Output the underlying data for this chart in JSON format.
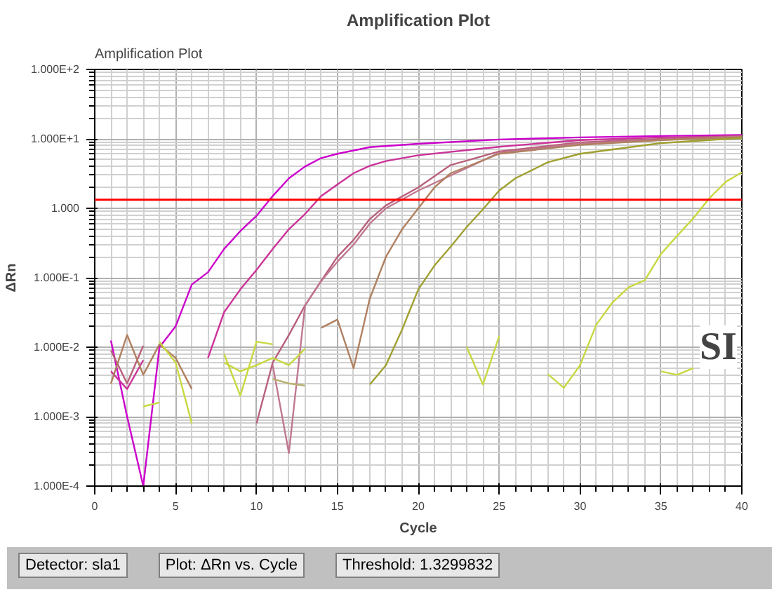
{
  "chart_data": {
    "type": "line",
    "title": "Amplification Plot",
    "xlabel": "Cycle",
    "ylabel": "ΔRn",
    "log": "y",
    "grid": true,
    "line_style": "solid",
    "marker": "none",
    "xlim": [
      0,
      40
    ],
    "xticks": [
      0,
      5,
      10,
      15,
      20,
      25,
      30,
      35,
      40
    ],
    "ylim": [
      0.0001,
      100
    ],
    "yticks": [
      {
        "value": 100,
        "label": "1.000E+2"
      },
      {
        "value": 10,
        "label": "1.000E+1"
      },
      {
        "value": 1,
        "label": "1.000"
      },
      {
        "value": 0.1,
        "label": "1.000E-1"
      },
      {
        "value": 0.01,
        "label": "1.000E-2"
      },
      {
        "value": 0.001,
        "label": "1.000E-3"
      },
      {
        "value": 0.0001,
        "label": "1.000E-4"
      }
    ],
    "ref_lines": [
      {
        "axis": "y",
        "value": 1.3299832,
        "color": "#ff0000"
      }
    ],
    "annotations": [
      "Amplification Plot",
      "Detector: sla1",
      "Plot: ΔRn vs. Cycle",
      "Threshold: 1.3299832",
      "SI"
    ],
    "series": [
      {
        "color": "#cc00cc",
        "x": [
          1,
          2,
          3,
          4,
          5,
          6,
          7,
          8,
          9,
          10,
          11,
          12,
          13,
          14,
          15,
          17,
          20,
          25,
          30,
          35,
          40
        ],
        "values": [
          0.0125,
          0.001,
          0.0001,
          0.01,
          0.02,
          0.08,
          0.12,
          0.26,
          0.47,
          0.78,
          1.5,
          2.7,
          4,
          5.3,
          6.1,
          7.6,
          8.5,
          9.8,
          10.5,
          11,
          11.4
        ]
      },
      {
        "color": "#cc3399",
        "x": [
          1,
          2,
          3,
          4,
          7,
          8,
          9,
          10,
          11,
          12,
          13,
          14,
          15,
          16,
          17,
          18,
          20,
          25,
          30,
          35,
          40
        ],
        "values": [
          0.0045,
          0.0025,
          0.0065,
          null,
          0.007,
          0.032,
          0.068,
          0.13,
          0.26,
          0.5,
          0.83,
          1.5,
          2.2,
          3.2,
          4.1,
          4.8,
          5.8,
          7.7,
          9.6,
          10.5,
          11
        ]
      },
      {
        "color": "#b8607a",
        "x": [
          1,
          2,
          3,
          4,
          10,
          11,
          12,
          13,
          14,
          15,
          16,
          17,
          18,
          20,
          22,
          25,
          30,
          35,
          40
        ],
        "values": [
          0.009,
          0.003,
          0.0105,
          null,
          0.0008,
          0.006,
          0.015,
          0.04,
          0.09,
          0.2,
          0.35,
          0.7,
          1.1,
          2.0,
          4.2,
          6.6,
          8.9,
          10,
          11
        ]
      },
      {
        "color": "#c07890",
        "x": [
          11,
          12,
          13,
          14,
          15,
          16,
          17,
          18,
          20,
          25,
          30,
          40
        ],
        "values": [
          0.0055,
          0.0003,
          0.04,
          0.09,
          0.17,
          0.3,
          0.6,
          1.0,
          1.8,
          6.3,
          8.6,
          10.8
        ]
      },
      {
        "color": "#b08060",
        "x": [
          1,
          2,
          3,
          4,
          5,
          6,
          7,
          14,
          15,
          16,
          17,
          18,
          19,
          20,
          21,
          22,
          25,
          30,
          35,
          40
        ],
        "values": [
          0.003,
          0.015,
          0.004,
          0.011,
          0.007,
          0.0025,
          null,
          0.019,
          0.025,
          0.005,
          0.05,
          0.2,
          0.5,
          1.0,
          2.0,
          3.2,
          6.1,
          8.2,
          9.6,
          10.6
        ]
      },
      {
        "color": "#a0a030",
        "x": [
          17,
          18,
          19,
          20,
          21,
          22,
          23,
          24,
          25,
          26,
          28,
          30,
          35,
          40
        ],
        "values": [
          0.0029,
          0.0055,
          0.018,
          0.068,
          0.15,
          0.28,
          0.54,
          0.97,
          1.8,
          2.7,
          4.6,
          6.1,
          8.7,
          10.3
        ]
      },
      {
        "color": "#c8d840",
        "x": [
          3,
          4,
          5,
          8,
          9,
          10,
          11,
          12,
          23,
          24,
          25,
          26,
          28,
          29,
          30,
          31,
          32,
          33,
          34,
          35,
          36,
          37,
          38,
          39,
          40
        ],
        "values": [
          0.0014,
          0.0016,
          null,
          0.008,
          0.002,
          0.012,
          0.011,
          null,
          0.01,
          0.0029,
          0.0145,
          null,
          0.0041,
          0.0026,
          0.0055,
          0.021,
          0.044,
          0.073,
          0.092,
          0.22,
          0.4,
          0.72,
          1.4,
          2.4,
          3.3
        ]
      },
      {
        "color": "#c8d840",
        "x": [
          4,
          5,
          6,
          7,
          8,
          9,
          10,
          11,
          12,
          13,
          14,
          35,
          36,
          37
        ],
        "values": [
          0.012,
          0.006,
          0.0008,
          null,
          0.006,
          0.0045,
          0.0055,
          0.007,
          0.0055,
          0.0095,
          null,
          0.0045,
          0.004,
          0.005
        ]
      },
      {
        "color": "#b8b070",
        "x": [
          11,
          12,
          13
        ],
        "values": [
          0.0035,
          0.003,
          0.0028
        ]
      }
    ]
  }
}
